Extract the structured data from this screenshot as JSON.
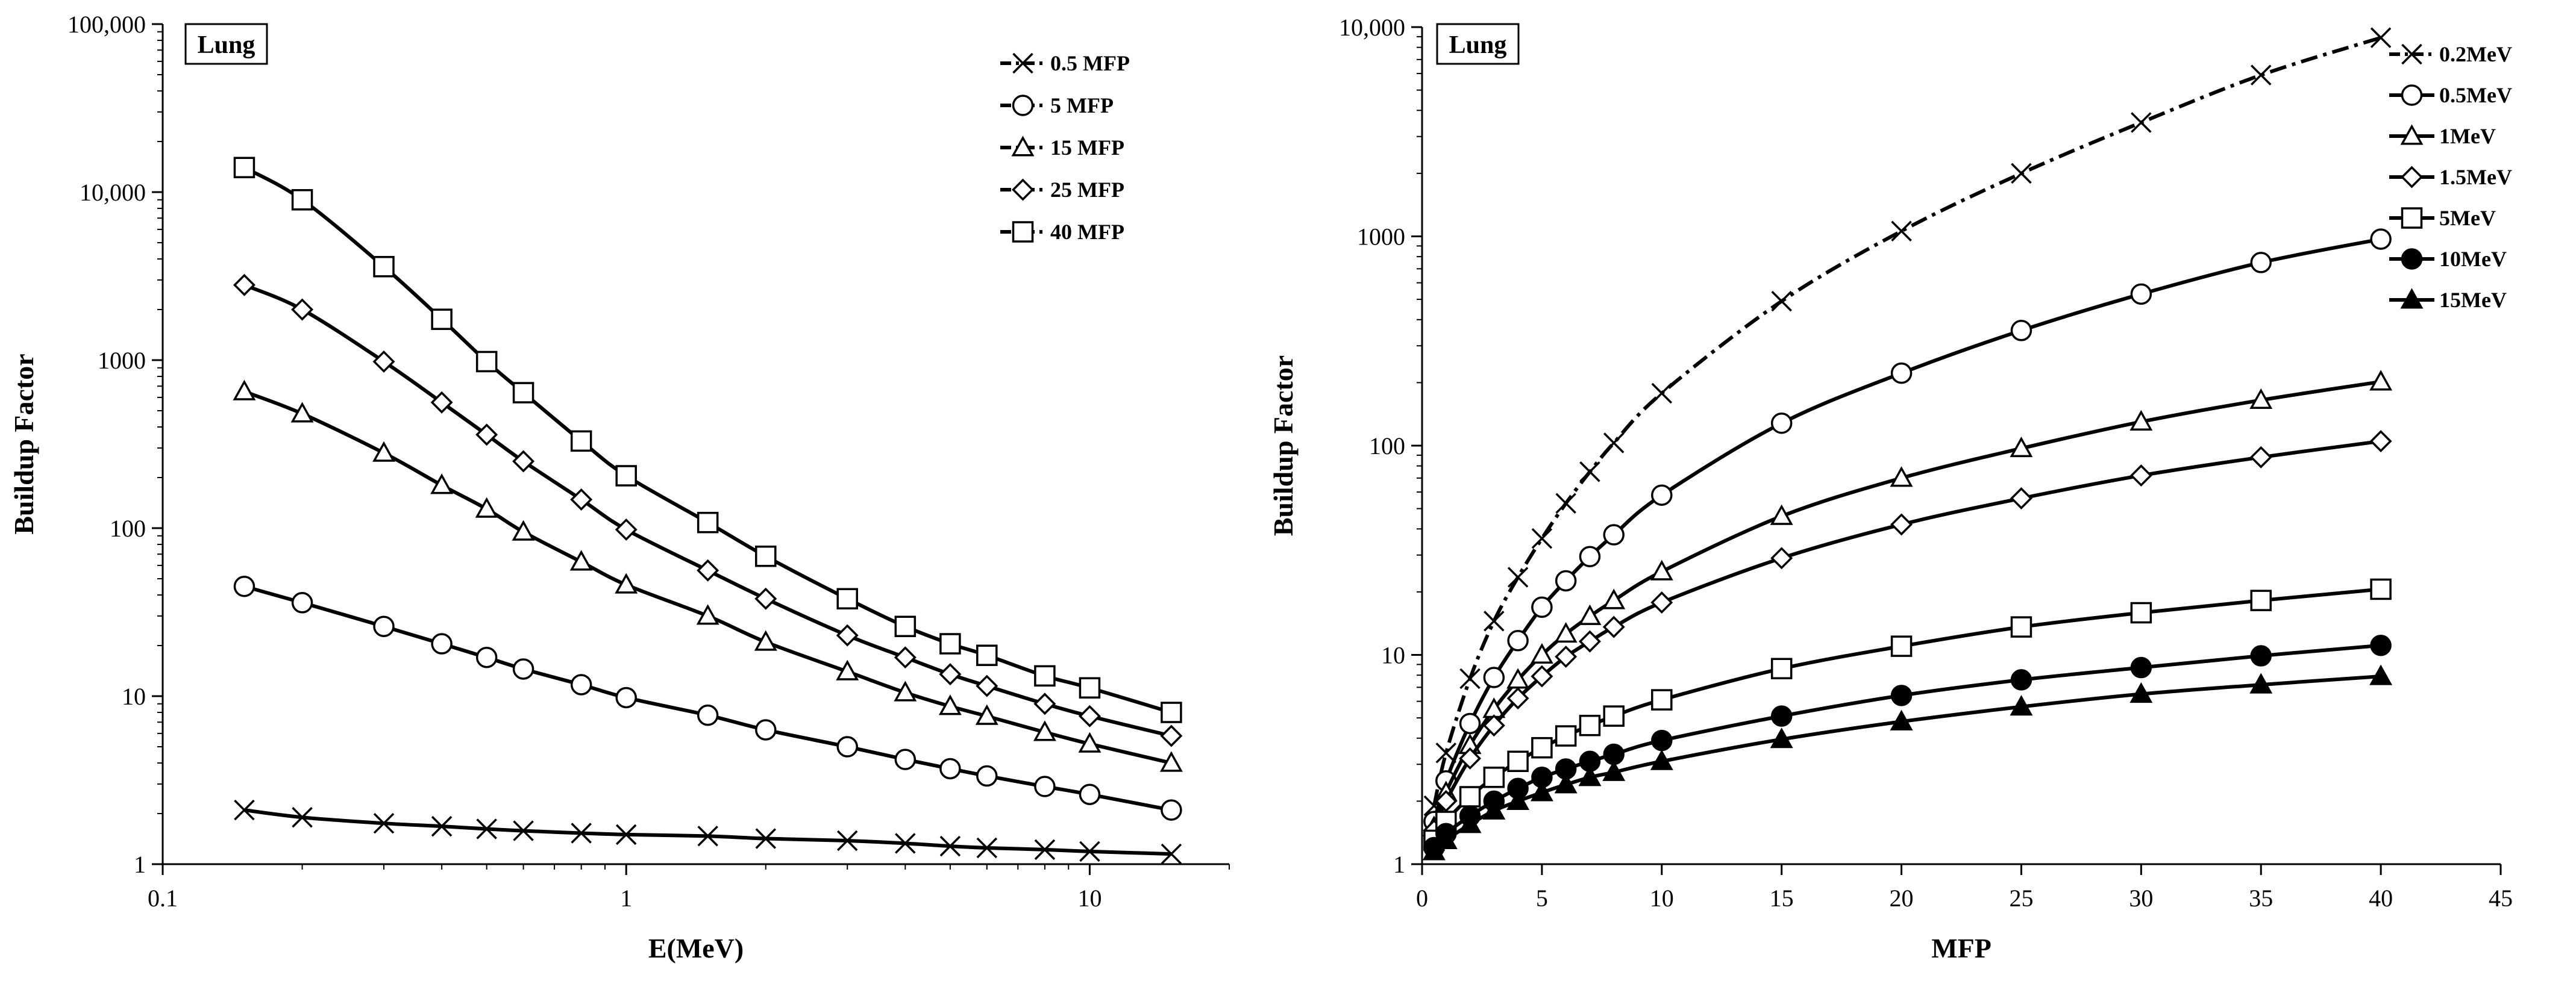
{
  "chart_data": [
    {
      "type": "line",
      "panel_label": "Lung",
      "xlabel": "E(MeV)",
      "ylabel": "Buildup Factor",
      "xscale": "log",
      "yscale": "log",
      "xlim": [
        0.1,
        20
      ],
      "ylim": [
        1,
        100000
      ],
      "x_ticks": [
        0.1,
        1,
        10
      ],
      "x_tick_labels": [
        "0.1",
        "1",
        "10"
      ],
      "y_ticks": [
        1,
        10,
        100,
        1000,
        10000,
        100000
      ],
      "y_tick_labels": [
        "1",
        "10",
        "100",
        "1000",
        "10,000",
        "100,000"
      ],
      "legend_position": "top-right",
      "grid": false,
      "x": [
        0.15,
        0.2,
        0.3,
        0.4,
        0.5,
        0.6,
        0.8,
        1,
        1.5,
        2,
        3,
        4,
        5,
        6,
        8,
        10,
        15
      ],
      "series": [
        {
          "name": "0.5 MFP",
          "marker": "x",
          "values": [
            2.1,
            1.9,
            1.75,
            1.68,
            1.62,
            1.58,
            1.53,
            1.5,
            1.47,
            1.42,
            1.38,
            1.33,
            1.28,
            1.25,
            1.22,
            1.19,
            1.15
          ]
        },
        {
          "name": "5 MFP",
          "marker": "circle",
          "values": [
            45,
            36,
            26,
            20.5,
            17,
            14.5,
            11.7,
            9.8,
            7.7,
            6.3,
            5.0,
            4.2,
            3.7,
            3.35,
            2.9,
            2.6,
            2.1
          ]
        },
        {
          "name": "15 MFP",
          "marker": "triangle",
          "values": [
            650,
            480,
            280,
            180,
            130,
            95,
            63,
            46,
            30,
            21,
            14,
            10.5,
            8.7,
            7.6,
            6.1,
            5.2,
            4.0
          ]
        },
        {
          "name": "25 MFP",
          "marker": "diamond",
          "values": [
            2800,
            2000,
            980,
            560,
            360,
            250,
            148,
            98,
            56,
            38,
            23,
            17,
            13.5,
            11.5,
            9.0,
            7.6,
            5.8
          ]
        },
        {
          "name": "40 MFP",
          "marker": "square",
          "values": [
            14000,
            9000,
            3600,
            1750,
            980,
            640,
            330,
            205,
            108,
            68,
            38,
            26,
            20.5,
            17.5,
            13.2,
            11.2,
            8.0
          ]
        }
      ]
    },
    {
      "type": "line",
      "panel_label": "Lung",
      "xlabel": "MFP",
      "ylabel": "Buildup Factor",
      "xscale": "linear",
      "yscale": "log",
      "xlim": [
        0,
        45
      ],
      "ylim": [
        1,
        10000
      ],
      "x_ticks": [
        0,
        5,
        10,
        15,
        20,
        25,
        30,
        35,
        40,
        45
      ],
      "x_tick_labels": [
        "0",
        "5",
        "10",
        "15",
        "20",
        "25",
        "30",
        "35",
        "40",
        "45"
      ],
      "y_ticks": [
        1,
        10,
        100,
        1000,
        10000
      ],
      "y_tick_labels": [
        "1",
        "10",
        "100",
        "1000",
        "10,000"
      ],
      "legend_position": "top-right",
      "grid": false,
      "x": [
        0.5,
        1,
        2,
        3,
        4,
        5,
        6,
        7,
        8,
        10,
        15,
        20,
        25,
        30,
        35,
        40
      ],
      "series": [
        {
          "name": "0.2MeV",
          "marker": "x",
          "line": "dash-dot",
          "values": [
            1.9,
            3.4,
            7.7,
            14.5,
            23.5,
            36,
            53,
            75,
            103,
            178,
            490,
            1060,
            2000,
            3500,
            5900,
            8900
          ]
        },
        {
          "name": "0.5MeV",
          "marker": "circle",
          "values": [
            1.6,
            2.5,
            4.7,
            7.8,
            11.7,
            16.9,
            22.6,
            29.5,
            37.5,
            58,
            128,
            222,
            355,
            530,
            750,
            970
          ]
        },
        {
          "name": "1MeV",
          "marker": "triangle",
          "values": [
            1.5,
            2.2,
            3.7,
            5.5,
            7.6,
            10.0,
            12.6,
            15.3,
            18.2,
            25,
            46,
            70,
            97,
            130,
            165,
            202
          ]
        },
        {
          "name": "1.5MeV",
          "marker": "diamond",
          "values": [
            1.45,
            2.0,
            3.2,
            4.6,
            6.2,
            7.9,
            9.8,
            11.6,
            13.6,
            17.8,
            29,
            42,
            56,
            72,
            88,
            105
          ]
        },
        {
          "name": "5MeV",
          "marker": "square",
          "values": [
            1.3,
            1.6,
            2.1,
            2.6,
            3.1,
            3.6,
            4.1,
            4.6,
            5.1,
            6.1,
            8.6,
            11.0,
            13.6,
            15.9,
            18.2,
            20.6
          ]
        },
        {
          "name": "10MeV",
          "marker": "filled-circle",
          "values": [
            1.2,
            1.4,
            1.7,
            2.0,
            2.3,
            2.6,
            2.85,
            3.1,
            3.35,
            3.9,
            5.1,
            6.4,
            7.6,
            8.7,
            9.9,
            11.1
          ]
        },
        {
          "name": "15MeV",
          "marker": "filled-triangle",
          "values": [
            1.15,
            1.3,
            1.55,
            1.8,
            2.0,
            2.2,
            2.4,
            2.6,
            2.75,
            3.1,
            3.95,
            4.8,
            5.65,
            6.5,
            7.2,
            7.9
          ]
        }
      ]
    }
  ]
}
